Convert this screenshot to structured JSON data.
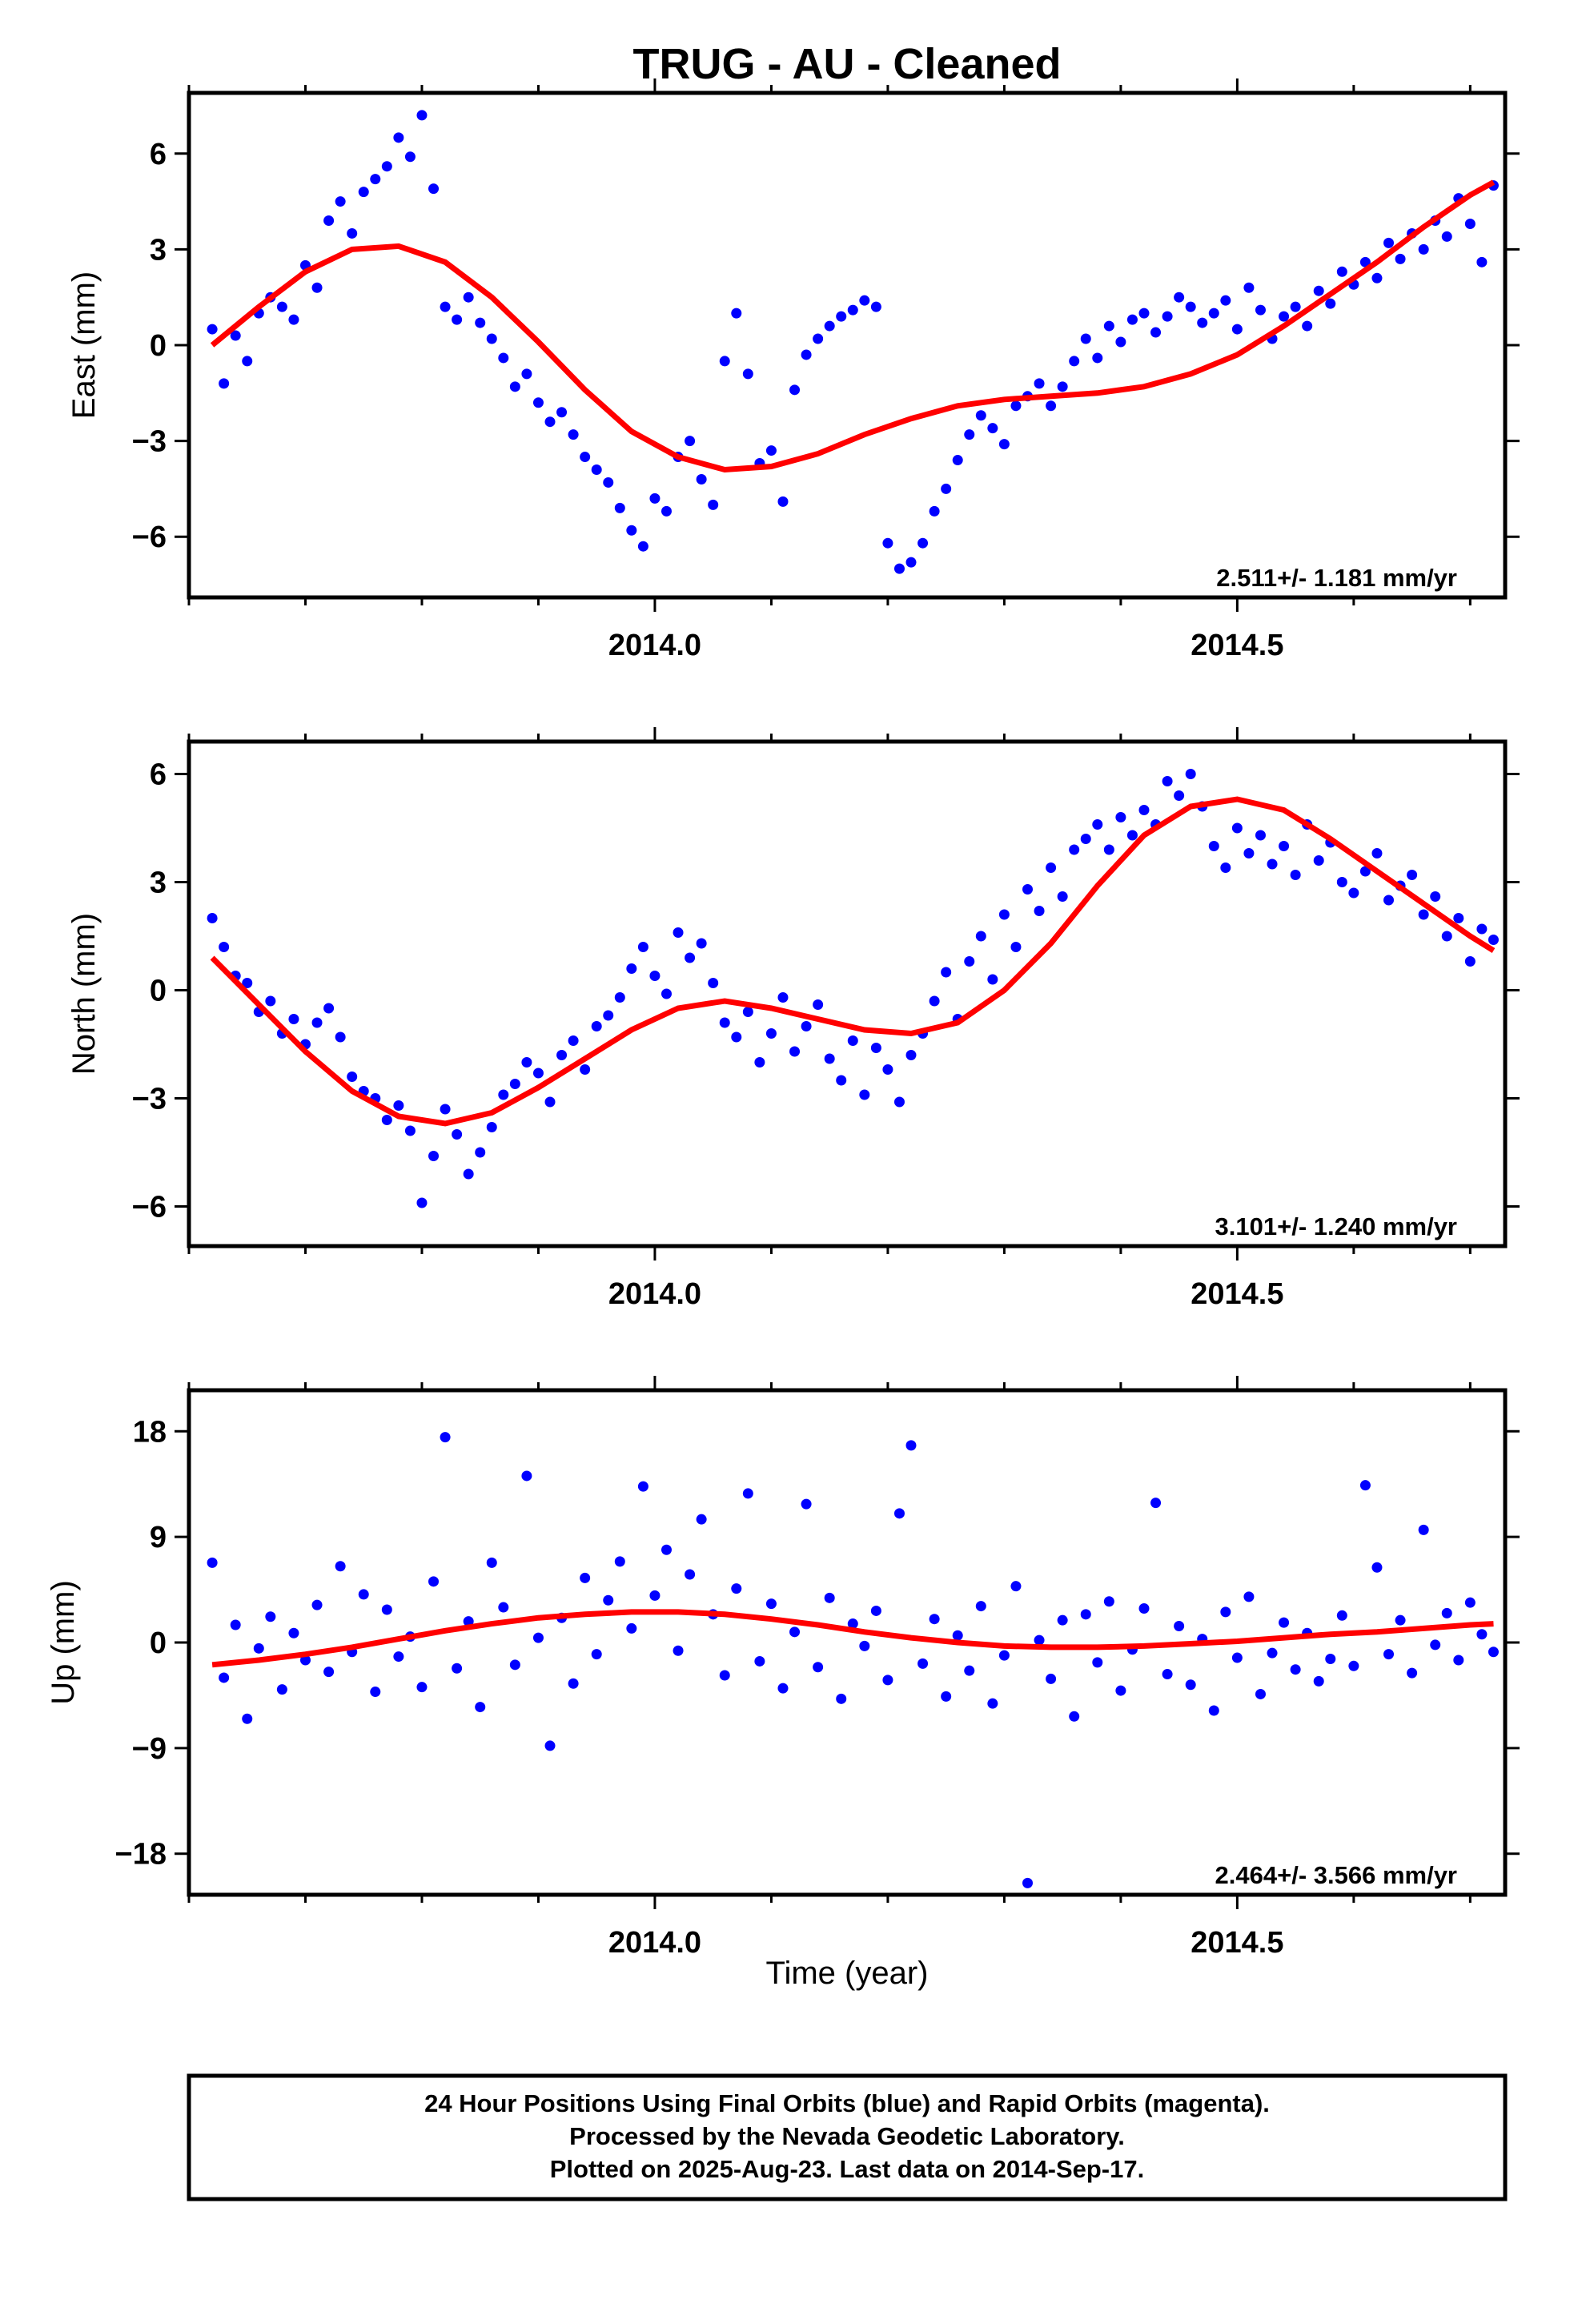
{
  "chart_data": {
    "title": "TRUG  - AU - Cleaned",
    "xlabel": "Time (year)",
    "xlim": [
      2013.6,
      2014.73
    ],
    "x_ticks": [
      "2014.0",
      "2014.5"
    ],
    "grid": false,
    "colors": {
      "final_orbits": "#0000ff",
      "rapid_orbits": "#ff00ff",
      "fit": "#ff0000",
      "frame": "#000000"
    },
    "panels": [
      {
        "type": "scatter",
        "ylabel": "East (mm)",
        "ylim": [
          -7.9,
          7.9
        ],
        "y_ticks": [
          6,
          3,
          0,
          -3,
          -6
        ],
        "y_tick_labels": [
          "6",
          "3",
          "0",
          "−3",
          "−6"
        ],
        "rate_label": "2.511+/- 1.181 mm/yr",
        "series": [
          {
            "x": [
              2013.62,
              2013.63,
              2013.64,
              2013.65,
              2013.66,
              2013.67,
              2013.68,
              2013.69,
              2013.7,
              2013.71,
              2013.72,
              2013.73,
              2013.74,
              2013.75,
              2013.76,
              2013.77,
              2013.78,
              2013.79,
              2013.8,
              2013.81,
              2013.82,
              2013.83,
              2013.84,
              2013.85,
              2013.86,
              2013.87,
              2013.88,
              2013.89,
              2013.9,
              2013.91,
              2013.92,
              2013.93,
              2013.94,
              2013.95,
              2013.96,
              2013.97,
              2013.98,
              2013.99,
              2014.0,
              2014.01,
              2014.02,
              2014.03,
              2014.04,
              2014.05,
              2014.06,
              2014.07,
              2014.08,
              2014.09,
              2014.1,
              2014.11,
              2014.12,
              2014.13,
              2014.14,
              2014.15,
              2014.16,
              2014.17,
              2014.18,
              2014.19,
              2014.2,
              2014.21,
              2014.22,
              2014.23,
              2014.24,
              2014.25,
              2014.26,
              2014.27,
              2014.28,
              2014.29,
              2014.3,
              2014.31,
              2014.32,
              2014.33,
              2014.34,
              2014.35,
              2014.36,
              2014.37,
              2014.38,
              2014.39,
              2014.4,
              2014.41,
              2014.42,
              2014.43,
              2014.44,
              2014.45,
              2014.46,
              2014.47,
              2014.48,
              2014.49,
              2014.5,
              2014.51,
              2014.52,
              2014.53,
              2014.54,
              2014.55,
              2014.56,
              2014.57,
              2014.58,
              2014.59,
              2014.6,
              2014.61,
              2014.62,
              2014.63,
              2014.64,
              2014.65,
              2014.66,
              2014.67,
              2014.68,
              2014.69,
              2014.7,
              2014.71,
              2014.72
            ],
            "y": [
              0.5,
              -1.2,
              0.3,
              -0.5,
              1.0,
              1.5,
              1.2,
              0.8,
              2.5,
              1.8,
              3.9,
              4.5,
              3.5,
              4.8,
              5.2,
              5.6,
              6.5,
              5.9,
              7.2,
              4.9,
              1.2,
              0.8,
              1.5,
              0.7,
              0.2,
              -0.4,
              -1.3,
              -0.9,
              -1.8,
              -2.4,
              -2.1,
              -2.8,
              -3.5,
              -3.9,
              -4.3,
              -5.1,
              -5.8,
              -6.3,
              -4.8,
              -5.2,
              -3.5,
              -3.0,
              -4.2,
              -5.0,
              -0.5,
              1.0,
              -0.9,
              -3.7,
              -3.3,
              -4.9,
              -1.4,
              -0.3,
              0.2,
              0.6,
              0.9,
              1.1,
              1.4,
              1.2,
              -6.2,
              -7.0,
              -6.8,
              -6.2,
              -5.2,
              -4.5,
              -3.6,
              -2.8,
              -2.2,
              -2.6,
              -3.1,
              -1.9,
              -1.6,
              -1.2,
              -1.9,
              -1.3,
              -0.5,
              0.2,
              -0.4,
              0.6,
              0.1,
              0.8,
              1.0,
              0.4,
              0.9,
              1.5,
              1.2,
              0.7,
              1.0,
              1.4,
              0.5,
              1.8,
              1.1,
              0.2,
              0.9,
              1.2,
              0.6,
              1.7,
              1.3,
              2.3,
              1.9,
              2.6,
              2.1,
              3.2,
              2.7,
              3.5,
              3.0,
              3.9,
              3.4,
              4.6,
              3.8,
              2.6,
              5.0
            ]
          }
        ],
        "fit": {
          "x": [
            2013.62,
            2013.66,
            2013.7,
            2013.74,
            2013.78,
            2013.82,
            2013.86,
            2013.9,
            2013.94,
            2013.98,
            2014.02,
            2014.06,
            2014.1,
            2014.14,
            2014.18,
            2014.22,
            2014.26,
            2014.3,
            2014.34,
            2014.38,
            2014.42,
            2014.46,
            2014.5,
            2014.54,
            2014.58,
            2014.62,
            2014.66,
            2014.7,
            2014.72
          ],
          "y": [
            0.0,
            1.2,
            2.3,
            3.0,
            3.1,
            2.6,
            1.5,
            0.1,
            -1.4,
            -2.7,
            -3.5,
            -3.9,
            -3.8,
            -3.4,
            -2.8,
            -2.3,
            -1.9,
            -1.7,
            -1.6,
            -1.5,
            -1.3,
            -0.9,
            -0.3,
            0.6,
            1.6,
            2.6,
            3.7,
            4.7,
            5.1
          ]
        }
      },
      {
        "type": "scatter",
        "ylabel": "North (mm)",
        "ylim": [
          -7.1,
          6.9
        ],
        "y_ticks": [
          6,
          3,
          0,
          -3,
          -6
        ],
        "y_tick_labels": [
          "6",
          "3",
          "0",
          "−3",
          "−6"
        ],
        "rate_label": "3.101+/- 1.240 mm/yr",
        "series": [
          {
            "x": [
              2013.62,
              2013.63,
              2013.64,
              2013.65,
              2013.66,
              2013.67,
              2013.68,
              2013.69,
              2013.7,
              2013.71,
              2013.72,
              2013.73,
              2013.74,
              2013.75,
              2013.76,
              2013.77,
              2013.78,
              2013.79,
              2013.8,
              2013.81,
              2013.82,
              2013.83,
              2013.84,
              2013.85,
              2013.86,
              2013.87,
              2013.88,
              2013.89,
              2013.9,
              2013.91,
              2013.92,
              2013.93,
              2013.94,
              2013.95,
              2013.96,
              2013.97,
              2013.98,
              2013.99,
              2014.0,
              2014.01,
              2014.02,
              2014.03,
              2014.04,
              2014.05,
              2014.06,
              2014.07,
              2014.08,
              2014.09,
              2014.1,
              2014.11,
              2014.12,
              2014.13,
              2014.14,
              2014.15,
              2014.16,
              2014.17,
              2014.18,
              2014.19,
              2014.2,
              2014.21,
              2014.22,
              2014.23,
              2014.24,
              2014.25,
              2014.26,
              2014.27,
              2014.28,
              2014.29,
              2014.3,
              2014.31,
              2014.32,
              2014.33,
              2014.34,
              2014.35,
              2014.36,
              2014.37,
              2014.38,
              2014.39,
              2014.4,
              2014.41,
              2014.42,
              2014.43,
              2014.44,
              2014.45,
              2014.46,
              2014.47,
              2014.48,
              2014.49,
              2014.5,
              2014.51,
              2014.52,
              2014.53,
              2014.54,
              2014.55,
              2014.56,
              2014.57,
              2014.58,
              2014.59,
              2014.6,
              2014.61,
              2014.62,
              2014.63,
              2014.64,
              2014.65,
              2014.66,
              2014.67,
              2014.68,
              2014.69,
              2014.7,
              2014.71,
              2014.72
            ],
            "y": [
              2.0,
              1.2,
              0.4,
              0.2,
              -0.6,
              -0.3,
              -1.2,
              -0.8,
              -1.5,
              -0.9,
              -0.5,
              -1.3,
              -2.4,
              -2.8,
              -3.0,
              -3.6,
              -3.2,
              -3.9,
              -5.9,
              -4.6,
              -3.3,
              -4.0,
              -5.1,
              -4.5,
              -3.8,
              -2.9,
              -2.6,
              -2.0,
              -2.3,
              -3.1,
              -1.8,
              -1.4,
              -2.2,
              -1.0,
              -0.7,
              -0.2,
              0.6,
              1.2,
              0.4,
              -0.1,
              1.6,
              0.9,
              1.3,
              0.2,
              -0.9,
              -1.3,
              -0.6,
              -2.0,
              -1.2,
              -0.2,
              -1.7,
              -1.0,
              -0.4,
              -1.9,
              -2.5,
              -1.4,
              -2.9,
              -1.6,
              -2.2,
              -3.1,
              -1.8,
              -1.2,
              -0.3,
              0.5,
              -0.8,
              0.8,
              1.5,
              0.3,
              2.1,
              1.2,
              2.8,
              2.2,
              3.4,
              2.6,
              3.9,
              4.2,
              4.6,
              3.9,
              4.8,
              4.3,
              5.0,
              4.6,
              5.8,
              5.4,
              6.0,
              5.1,
              4.0,
              3.4,
              4.5,
              3.8,
              4.3,
              3.5,
              4.0,
              3.2,
              4.6,
              3.6,
              4.1,
              3.0,
              2.7,
              3.3,
              3.8,
              2.5,
              2.9,
              3.2,
              2.1,
              2.6,
              1.5,
              2.0,
              0.8,
              1.7,
              1.4
            ]
          }
        ],
        "fit": {
          "x": [
            2013.62,
            2013.66,
            2013.7,
            2013.74,
            2013.78,
            2013.82,
            2013.86,
            2013.9,
            2013.94,
            2013.98,
            2014.02,
            2014.06,
            2014.1,
            2014.14,
            2014.18,
            2014.22,
            2014.26,
            2014.3,
            2014.34,
            2014.38,
            2014.42,
            2014.46,
            2014.5,
            2014.54,
            2014.58,
            2014.62,
            2014.66,
            2014.7,
            2014.72
          ],
          "y": [
            0.9,
            -0.4,
            -1.7,
            -2.8,
            -3.5,
            -3.7,
            -3.4,
            -2.7,
            -1.9,
            -1.1,
            -0.5,
            -0.3,
            -0.5,
            -0.8,
            -1.1,
            -1.2,
            -0.9,
            0.0,
            1.3,
            2.9,
            4.3,
            5.1,
            5.3,
            5.0,
            4.2,
            3.3,
            2.4,
            1.5,
            1.1
          ]
        }
      },
      {
        "type": "scatter",
        "ylabel": "Up (mm)",
        "ylim": [
          -21.5,
          21.5
        ],
        "y_ticks": [
          18,
          9,
          0,
          -9,
          -18
        ],
        "y_tick_labels": [
          "18",
          "9",
          "0",
          "−9",
          "−18"
        ],
        "rate_label": "2.464+/- 3.566 mm/yr",
        "series": [
          {
            "x": [
              2013.62,
              2013.63,
              2013.64,
              2013.65,
              2013.66,
              2013.67,
              2013.68,
              2013.69,
              2013.7,
              2013.71,
              2013.72,
              2013.73,
              2013.74,
              2013.75,
              2013.76,
              2013.77,
              2013.78,
              2013.79,
              2013.8,
              2013.81,
              2013.82,
              2013.83,
              2013.84,
              2013.85,
              2013.86,
              2013.87,
              2013.88,
              2013.89,
              2013.9,
              2013.91,
              2013.92,
              2013.93,
              2013.94,
              2013.95,
              2013.96,
              2013.97,
              2013.98,
              2013.99,
              2014.0,
              2014.01,
              2014.02,
              2014.03,
              2014.04,
              2014.05,
              2014.06,
              2014.07,
              2014.08,
              2014.09,
              2014.1,
              2014.11,
              2014.12,
              2014.13,
              2014.14,
              2014.15,
              2014.16,
              2014.17,
              2014.18,
              2014.19,
              2014.2,
              2014.21,
              2014.22,
              2014.23,
              2014.24,
              2014.25,
              2014.26,
              2014.27,
              2014.28,
              2014.29,
              2014.3,
              2014.31,
              2014.32,
              2014.33,
              2014.34,
              2014.35,
              2014.36,
              2014.37,
              2014.38,
              2014.39,
              2014.4,
              2014.41,
              2014.42,
              2014.43,
              2014.44,
              2014.45,
              2014.46,
              2014.47,
              2014.48,
              2014.49,
              2014.5,
              2014.51,
              2014.52,
              2014.53,
              2014.54,
              2014.55,
              2014.56,
              2014.57,
              2014.58,
              2014.59,
              2014.6,
              2014.61,
              2014.62,
              2014.63,
              2014.64,
              2014.65,
              2014.66,
              2014.67,
              2014.68,
              2014.69,
              2014.7,
              2014.71,
              2014.72
            ],
            "y": [
              6.8,
              -3.0,
              1.5,
              -6.5,
              -0.5,
              2.2,
              -4.0,
              0.8,
              -1.5,
              3.2,
              -2.5,
              6.5,
              -0.8,
              4.1,
              -4.2,
              2.8,
              -1.2,
              0.5,
              -3.8,
              5.2,
              17.5,
              -2.2,
              1.8,
              -5.5,
              6.8,
              3.0,
              -1.9,
              14.2,
              0.4,
              -8.8,
              2.1,
              -3.5,
              5.5,
              -1.0,
              3.6,
              6.9,
              1.2,
              13.3,
              4.0,
              7.9,
              -0.7,
              5.8,
              10.5,
              2.4,
              -2.8,
              4.6,
              12.7,
              -1.6,
              3.3,
              -3.9,
              0.9,
              11.8,
              -2.1,
              3.8,
              -4.8,
              1.6,
              -0.3,
              2.7,
              -3.2,
              11.0,
              16.8,
              -1.8,
              2.0,
              -4.6,
              0.6,
              -2.4,
              3.1,
              -5.2,
              -1.1,
              4.8,
              -20.5,
              0.2,
              -3.1,
              1.9,
              -6.3,
              2.4,
              -1.7,
              3.5,
              -4.1,
              -0.6,
              2.9,
              11.9,
              -2.7,
              1.4,
              -3.6,
              0.3,
              -5.8,
              2.6,
              -1.3,
              3.9,
              -4.4,
              -0.9,
              1.7,
              -2.3,
              0.8,
              -3.3,
              -1.4,
              2.3,
              -2.0,
              13.4,
              6.4,
              -1.0,
              1.9,
              -2.6,
              9.6,
              -0.2,
              2.5,
              -1.5,
              3.4,
              0.7,
              -0.8
            ]
          }
        ],
        "fit": {
          "x": [
            2013.62,
            2013.66,
            2013.7,
            2013.74,
            2013.78,
            2013.82,
            2013.86,
            2013.9,
            2013.94,
            2013.98,
            2014.02,
            2014.06,
            2014.1,
            2014.14,
            2014.18,
            2014.22,
            2014.26,
            2014.3,
            2014.34,
            2014.38,
            2014.42,
            2014.46,
            2014.5,
            2014.54,
            2014.58,
            2014.62,
            2014.66,
            2014.7,
            2014.72
          ],
          "y": [
            -1.9,
            -1.5,
            -1.0,
            -0.4,
            0.3,
            1.0,
            1.6,
            2.1,
            2.4,
            2.6,
            2.6,
            2.4,
            2.0,
            1.5,
            0.9,
            0.4,
            0.0,
            -0.3,
            -0.4,
            -0.4,
            -0.3,
            -0.1,
            0.1,
            0.4,
            0.7,
            0.9,
            1.2,
            1.5,
            1.6
          ]
        }
      }
    ]
  },
  "footer": {
    "line1": "24 Hour Positions Using Final Orbits (blue) and Rapid Orbits (magenta).",
    "line2": "Processed by the Nevada Geodetic Laboratory.",
    "line3": "Plotted on 2025-Aug-23. Last data on 2014-Sep-17."
  }
}
